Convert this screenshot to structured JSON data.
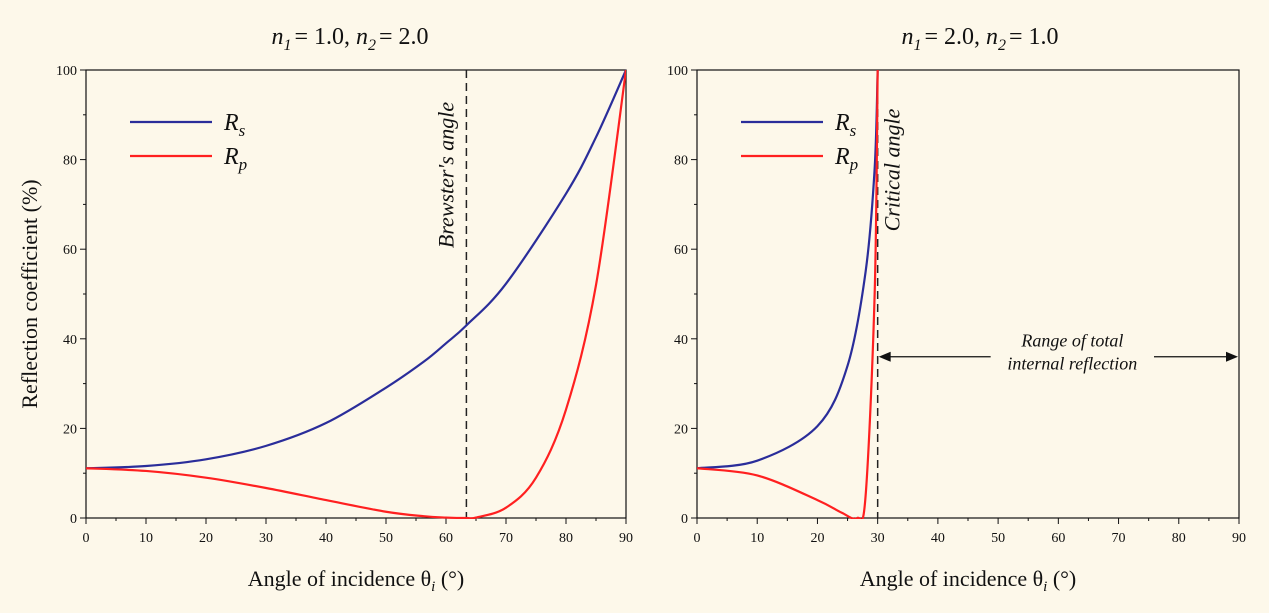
{
  "chart_data": [
    {
      "type": "line",
      "title": {
        "n1_sym": "n",
        "n1_sub": "1",
        "n1_val": "= 1.0,",
        "n2_sym": "n",
        "n2_sub": "2",
        "n2_val": "= 2.0"
      },
      "n1": 1.0,
      "n2": 2.0,
      "xlabel": {
        "text": "Angle of incidence θ",
        "sub": "i",
        "unit": " (°)"
      },
      "ylabel": "Reflection coefficient (%)",
      "xlim": [
        0,
        90
      ],
      "ylim": [
        0,
        100
      ],
      "xticks": [
        0,
        10,
        20,
        30,
        40,
        50,
        60,
        70,
        80,
        90
      ],
      "yticks": [
        0,
        20,
        40,
        60,
        80,
        100
      ],
      "legend": {
        "position": "top-left"
      },
      "series": [
        {
          "name": "R",
          "sub": "s",
          "color": "#2a2d9a",
          "x": [
            0,
            10,
            20,
            30,
            40,
            50,
            56.3,
            60,
            63.4,
            70,
            80,
            85,
            90
          ],
          "y": [
            11.1,
            11.6,
            13.1,
            16.1,
            21.2,
            29.1,
            34.9,
            39.0,
            43.0,
            52.3,
            72.4,
            85.0,
            100
          ]
        },
        {
          "name": "R",
          "sub": "p",
          "color": "#ff2020",
          "x": [
            0,
            10,
            20,
            30,
            40,
            50,
            56.3,
            60,
            63.4,
            65,
            70,
            75,
            80,
            85,
            90
          ],
          "y": [
            11.1,
            10.5,
            9.0,
            6.7,
            4.0,
            1.4,
            0.4,
            0.1,
            0.0,
            0.1,
            2.3,
            9.0,
            24.2,
            52.0,
            100
          ]
        }
      ],
      "annotations": [
        {
          "type": "vline",
          "x": 63.4,
          "style": "dashed",
          "label": "Brewster's angle"
        }
      ]
    },
    {
      "type": "line",
      "title": {
        "n1_sym": "n",
        "n1_sub": "1",
        "n1_val": "= 2.0,",
        "n2_sym": "n",
        "n2_sub": "2",
        "n2_val": "= 1.0"
      },
      "n1": 2.0,
      "n2": 1.0,
      "xlabel": {
        "text": "Angle of incidence θ",
        "sub": "i",
        "unit": " (°)"
      },
      "ylabel": "",
      "xlim": [
        0,
        90
      ],
      "ylim": [
        0,
        100
      ],
      "xticks": [
        0,
        10,
        20,
        30,
        40,
        50,
        60,
        70,
        80,
        90
      ],
      "yticks": [
        0,
        20,
        40,
        60,
        80,
        100
      ],
      "legend": {
        "position": "top-left"
      },
      "series": [
        {
          "name": "R",
          "sub": "s",
          "color": "#2a2d9a",
          "x": [
            0,
            10,
            20,
            25,
            28,
            29.5,
            30
          ],
          "y": [
            11.1,
            12.8,
            20.5,
            34.0,
            55.0,
            78.0,
            100
          ]
        },
        {
          "name": "R",
          "sub": "p",
          "color": "#ff2020",
          "x": [
            0,
            10,
            20,
            24,
            26.6,
            28,
            29.5,
            30
          ],
          "y": [
            11.1,
            9.5,
            4.0,
            1.2,
            0.0,
            5.0,
            50.0,
            100
          ]
        }
      ],
      "annotations": [
        {
          "type": "vline",
          "x": 30,
          "style": "dashed",
          "label": "Critical angle"
        },
        {
          "type": "range-arrow",
          "x_from": 30,
          "x_to": 90,
          "y": 36,
          "label_lines": [
            "Range of total",
            "internal reflection"
          ]
        }
      ]
    }
  ]
}
